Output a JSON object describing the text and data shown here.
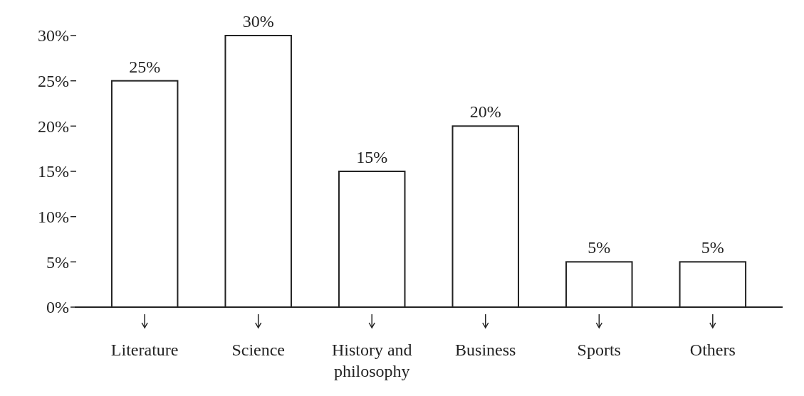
{
  "chart_data": {
    "type": "bar",
    "categories": [
      "Literature",
      "Science",
      "History and philosophy",
      "Business",
      "Sports",
      "Others"
    ],
    "values": [
      25,
      30,
      15,
      20,
      5,
      5
    ],
    "value_labels": [
      "25%",
      "30%",
      "15%",
      "20%",
      "5%",
      "5%"
    ],
    "color": "#ffffff",
    "ylim": [
      0,
      30
    ],
    "yticks": [
      {
        "value": 0,
        "label": "0%"
      },
      {
        "value": 5,
        "label": "5%"
      },
      {
        "value": 10,
        "label": "10%"
      },
      {
        "value": 15,
        "label": "15%"
      },
      {
        "value": 20,
        "label": "20%"
      },
      {
        "value": 25,
        "label": "25%"
      },
      {
        "value": 30,
        "label": "30%"
      }
    ],
    "grid": false
  }
}
